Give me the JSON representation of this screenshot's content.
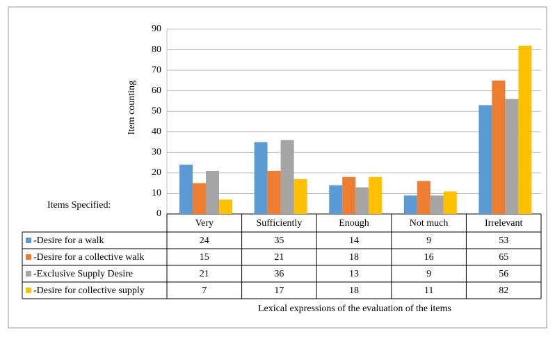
{
  "chart_data": {
    "type": "bar",
    "y_label": "Item counting",
    "x_label": "Lexical expressions of the evaluation of the items",
    "table_header": "Items Specified:",
    "categories": [
      "Very",
      "Sufficiently",
      "Enough",
      "Not much",
      "Irrelevant"
    ],
    "series": [
      {
        "name": "-Desire for a walk",
        "color": "#5b9bd5",
        "values": [
          24,
          35,
          14,
          9,
          53
        ]
      },
      {
        "name": "-Desire for a collective walk",
        "color": "#ed7d31",
        "values": [
          15,
          21,
          18,
          16,
          65
        ]
      },
      {
        "name": "-Exclusive Supply Desire",
        "color": "#a5a5a5",
        "values": [
          21,
          36,
          13,
          9,
          56
        ]
      },
      {
        "name": "-Desire for collective supply",
        "color": "#ffc000",
        "values": [
          7,
          17,
          18,
          11,
          82
        ]
      }
    ],
    "ylim": [
      0,
      90
    ],
    "yticks": [
      0,
      10,
      20,
      30,
      40,
      50,
      60,
      70,
      80,
      90
    ],
    "grid": true
  }
}
